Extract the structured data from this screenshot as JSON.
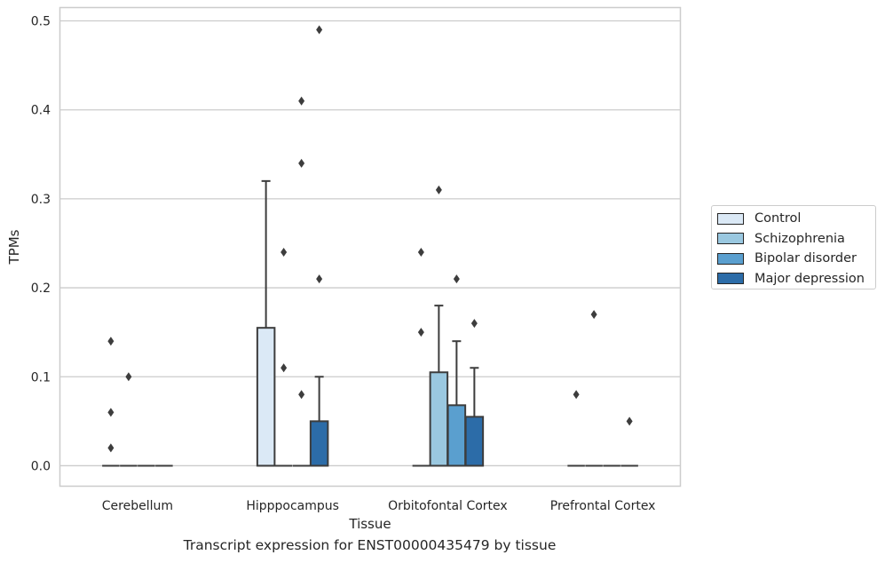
{
  "chart_data": {
    "type": "box",
    "title": "",
    "xlabel": "Tissue",
    "ylabel": "TPMs",
    "ylim": [
      -0.023,
      0.515
    ],
    "yticks": [
      "0.0",
      "0.1",
      "0.2",
      "0.3",
      "0.4",
      "0.5"
    ],
    "grid": true,
    "legend_position": "right",
    "categories": [
      "Cerebellum",
      "Hipppocampus",
      "Orbitofontal Cortex",
      "Prefrontal Cortex"
    ],
    "series": [
      {
        "name": "Control",
        "color": "#dbe9f6",
        "boxes": [
          {
            "q1": 0,
            "median": 0,
            "q3": 0,
            "whisker_low": 0,
            "whisker_high": 0,
            "outliers": [
              0.14,
              0.06,
              0.02
            ]
          },
          {
            "q1": 0,
            "median": 0,
            "q3": 0.155,
            "whisker_low": 0,
            "whisker_high": 0.32,
            "outliers": []
          },
          {
            "q1": 0,
            "median": 0,
            "q3": 0,
            "whisker_low": 0,
            "whisker_high": 0,
            "outliers": [
              0.24,
              0.15
            ]
          },
          {
            "q1": 0,
            "median": 0,
            "q3": 0,
            "whisker_low": 0,
            "whisker_high": 0,
            "outliers": [
              0.08
            ]
          }
        ]
      },
      {
        "name": "Schizophrenia",
        "color": "#9ac8e0",
        "boxes": [
          {
            "q1": 0,
            "median": 0,
            "q3": 0,
            "whisker_low": 0,
            "whisker_high": 0,
            "outliers": [
              0.1
            ]
          },
          {
            "q1": 0,
            "median": 0,
            "q3": 0,
            "whisker_low": 0,
            "whisker_high": 0,
            "outliers": [
              0.24,
              0.11
            ]
          },
          {
            "q1": 0,
            "median": 0,
            "q3": 0.105,
            "whisker_low": 0,
            "whisker_high": 0.18,
            "outliers": [
              0.31
            ]
          },
          {
            "q1": 0,
            "median": 0,
            "q3": 0,
            "whisker_low": 0,
            "whisker_high": 0,
            "outliers": [
              0.17
            ]
          }
        ]
      },
      {
        "name": "Bipolar disorder",
        "color": "#5a9fcf",
        "boxes": [
          {
            "q1": 0,
            "median": 0,
            "q3": 0,
            "whisker_low": 0,
            "whisker_high": 0,
            "outliers": []
          },
          {
            "q1": 0,
            "median": 0,
            "q3": 0,
            "whisker_low": 0,
            "whisker_high": 0,
            "outliers": [
              0.41,
              0.34,
              0.08
            ]
          },
          {
            "q1": 0,
            "median": 0,
            "q3": 0.068,
            "whisker_low": 0,
            "whisker_high": 0.14,
            "outliers": [
              0.21
            ]
          },
          {
            "q1": 0,
            "median": 0,
            "q3": 0,
            "whisker_low": 0,
            "whisker_high": 0,
            "outliers": []
          }
        ]
      },
      {
        "name": "Major depression",
        "color": "#2c6ca8",
        "boxes": [
          {
            "q1": 0,
            "median": 0,
            "q3": 0,
            "whisker_low": 0,
            "whisker_high": 0,
            "outliers": []
          },
          {
            "q1": 0,
            "median": 0,
            "q3": 0.05,
            "whisker_low": 0,
            "whisker_high": 0.1,
            "outliers": [
              0.49,
              0.21
            ]
          },
          {
            "q1": 0,
            "median": 0,
            "q3": 0.055,
            "whisker_low": 0,
            "whisker_high": 0.11,
            "outliers": [
              0.16
            ]
          },
          {
            "q1": 0,
            "median": 0,
            "q3": 0,
            "whisker_low": 0,
            "whisker_high": 0,
            "outliers": [
              0.05
            ]
          }
        ]
      }
    ]
  },
  "caption": "Transcript expression for ENST00000435479 by tissue"
}
